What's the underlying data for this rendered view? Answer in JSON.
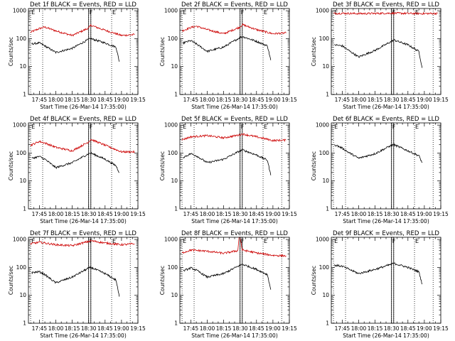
{
  "chart_data": [
    {
      "type": "line",
      "title": "Det 1f BLACK = Events, RED = LLD",
      "xlabel": "Start Time (26-Mar-14 17:35:00)",
      "ylabel": "Counts/sec",
      "yscale": "log",
      "ylim": [
        1,
        1200
      ],
      "xlim": [
        "17:35",
        "19:15"
      ],
      "x_ticks": [
        "17:45",
        "18:00",
        "18:15",
        "18:30",
        "18:45",
        "19:00",
        "19:15"
      ],
      "y_ticks": [
        "1",
        "10",
        "100",
        "1000"
      ],
      "grid": false,
      "vertical_markers": [
        "17:37",
        "17:48",
        "18:30",
        "18:32",
        "18:51",
        "19:08"
      ],
      "flag_labels": [
        "E",
        "F",
        "E"
      ],
      "series": [
        {
          "color": "#cc0000",
          "x": [
            "17:37",
            "17:45",
            "17:50",
            "18:00",
            "18:15",
            "18:30",
            "18:32",
            "18:45",
            "19:00",
            "19:12"
          ],
          "y": [
            170,
            230,
            260,
            190,
            130,
            240,
            300,
            200,
            130,
            140
          ]
        },
        {
          "color": "#000000",
          "x": [
            "17:38",
            "17:45",
            "17:50",
            "18:00",
            "18:15",
            "18:30",
            "18:32",
            "18:45",
            "18:55",
            "18:58"
          ],
          "y": [
            65,
            70,
            55,
            32,
            45,
            95,
            100,
            70,
            50,
            15
          ]
        }
      ]
    },
    {
      "type": "line",
      "title": "Det 2f BLACK = Events, RED = LLD",
      "xlabel": "Start Time (26-Mar-14 17:35:00)",
      "ylabel": "Counts/sec",
      "yscale": "log",
      "ylim": [
        1,
        1200
      ],
      "xlim": [
        "17:35",
        "19:15"
      ],
      "x_ticks": [
        "17:45",
        "18:00",
        "18:15",
        "18:30",
        "18:45",
        "19:00",
        "19:15"
      ],
      "y_ticks": [
        "1",
        "10",
        "100",
        "1000"
      ],
      "grid": false,
      "vertical_markers": [
        "17:37",
        "17:48",
        "18:30",
        "18:32",
        "18:51",
        "19:08"
      ],
      "flag_labels": [
        "E",
        "F",
        "E"
      ],
      "series": [
        {
          "color": "#cc0000",
          "x": [
            "17:37",
            "17:45",
            "17:50",
            "18:00",
            "18:15",
            "18:30",
            "18:32",
            "18:45",
            "19:00",
            "19:12"
          ],
          "y": [
            190,
            250,
            280,
            210,
            150,
            260,
            320,
            210,
            150,
            160
          ]
        },
        {
          "color": "#000000",
          "x": [
            "17:38",
            "17:45",
            "17:50",
            "18:00",
            "18:15",
            "18:30",
            "18:32",
            "18:45",
            "18:55",
            "18:58"
          ],
          "y": [
            70,
            85,
            65,
            35,
            50,
            110,
            120,
            80,
            55,
            17
          ]
        }
      ]
    },
    {
      "type": "line",
      "title": "Det 3f BLACK = Events, RED = LLD",
      "xlabel": "Start Time (26-Mar-14 17:35:00)",
      "ylabel": "Counts/sec",
      "yscale": "log",
      "ylim": [
        1,
        1200
      ],
      "xlim": [
        "17:35",
        "19:15"
      ],
      "x_ticks": [
        "17:45",
        "18:00",
        "18:15",
        "18:30",
        "18:45",
        "19:00",
        "19:15"
      ],
      "y_ticks": [
        "1",
        "10",
        "100",
        "1000"
      ],
      "grid": false,
      "vertical_markers": [
        "17:37",
        "17:48",
        "18:30",
        "18:32",
        "18:51",
        "19:08"
      ],
      "flag_labels": [
        "E",
        "F",
        "E"
      ],
      "series": [
        {
          "color": "#cc0000",
          "x": [
            "17:37",
            "17:45",
            "18:00",
            "18:15",
            "18:30",
            "18:45",
            "19:00",
            "19:12"
          ],
          "y": [
            800,
            810,
            790,
            800,
            820,
            800,
            790,
            800
          ]
        },
        {
          "color": "#000000",
          "x": [
            "17:38",
            "17:45",
            "17:50",
            "18:00",
            "18:15",
            "18:30",
            "18:32",
            "18:45",
            "18:55",
            "18:58"
          ],
          "y": [
            60,
            55,
            40,
            22,
            38,
            80,
            90,
            60,
            35,
            9
          ]
        }
      ]
    },
    {
      "type": "line",
      "title": "Det 4f BLACK = Events, RED = LLD",
      "xlabel": "Start Time (26-Mar-14 17:35:00)",
      "ylabel": "Counts/sec",
      "yscale": "log",
      "ylim": [
        1,
        1200
      ],
      "xlim": [
        "17:35",
        "19:15"
      ],
      "x_ticks": [
        "17:45",
        "18:00",
        "18:15",
        "18:30",
        "18:45",
        "19:00",
        "19:15"
      ],
      "y_ticks": [
        "1",
        "10",
        "100",
        "1000"
      ],
      "grid": false,
      "vertical_markers": [
        "17:37",
        "17:48",
        "18:30",
        "18:32",
        "18:51",
        "19:08"
      ],
      "flag_labels": [
        "E",
        "F",
        "E"
      ],
      "series": [
        {
          "color": "#cc0000",
          "x": [
            "17:37",
            "17:45",
            "17:50",
            "18:00",
            "18:15",
            "18:30",
            "18:32",
            "18:45",
            "19:00",
            "19:12"
          ],
          "y": [
            190,
            260,
            230,
            160,
            120,
            250,
            310,
            190,
            110,
            110
          ]
        },
        {
          "color": "#000000",
          "x": [
            "17:38",
            "17:45",
            "17:50",
            "18:00",
            "18:15",
            "18:30",
            "18:32",
            "18:45",
            "18:55",
            "18:58"
          ],
          "y": [
            65,
            75,
            60,
            30,
            45,
            95,
            100,
            60,
            35,
            20
          ]
        }
      ]
    },
    {
      "type": "line",
      "title": "Det 5f BLACK = Events, RED = LLD",
      "xlabel": "Start Time (26-Mar-14 17:35:00)",
      "ylabel": "Counts/sec",
      "yscale": "log",
      "ylim": [
        1,
        1200
      ],
      "xlim": [
        "17:35",
        "19:15"
      ],
      "x_ticks": [
        "17:45",
        "18:00",
        "18:15",
        "18:30",
        "18:45",
        "19:00",
        "19:15"
      ],
      "y_ticks": [
        "1",
        "10",
        "100",
        "1000"
      ],
      "grid": false,
      "vertical_markers": [
        "17:37",
        "17:48",
        "18:30",
        "18:32",
        "18:51",
        "19:08"
      ],
      "flag_labels": [
        "E",
        "F",
        "E"
      ],
      "series": [
        {
          "color": "#cc0000",
          "x": [
            "17:37",
            "17:45",
            "18:00",
            "18:15",
            "18:30",
            "18:32",
            "18:45",
            "19:00",
            "19:12"
          ],
          "y": [
            300,
            380,
            420,
            350,
            450,
            480,
            380,
            280,
            290
          ]
        },
        {
          "color": "#000000",
          "x": [
            "17:38",
            "17:45",
            "17:50",
            "18:00",
            "18:15",
            "18:30",
            "18:32",
            "18:45",
            "18:55",
            "18:58"
          ],
          "y": [
            70,
            95,
            80,
            45,
            60,
            120,
            130,
            85,
            55,
            16
          ]
        }
      ]
    },
    {
      "type": "line",
      "title": "Det 6f BLACK = Events, RED = LLD",
      "xlabel": "Start Time (26-Mar-14 17:35:00)",
      "ylabel": "Counts/sec",
      "yscale": "log",
      "ylim": [
        1,
        1200
      ],
      "xlim": [
        "17:35",
        "19:15"
      ],
      "x_ticks": [
        "17:45",
        "18:00",
        "18:15",
        "18:30",
        "18:45",
        "19:00",
        "19:15"
      ],
      "y_ticks": [
        "1",
        "10",
        "100",
        "1000"
      ],
      "grid": false,
      "vertical_markers": [
        "17:37",
        "17:48",
        "18:30",
        "18:32",
        "18:51",
        "19:08"
      ],
      "flag_labels": [
        "E",
        "F",
        "E"
      ],
      "series": [
        {
          "color": "#000000",
          "x": [
            "17:38",
            "17:45",
            "17:50",
            "18:00",
            "18:15",
            "18:30",
            "18:32",
            "18:45",
            "18:55",
            "18:58"
          ],
          "y": [
            200,
            150,
            110,
            65,
            95,
            190,
            200,
            120,
            80,
            45
          ]
        }
      ]
    },
    {
      "type": "line",
      "title": "Det 7f BLACK = Events, RED = LLD",
      "xlabel": "Start Time (26-Mar-14 17:35:00)",
      "ylabel": "Counts/sec",
      "yscale": "log",
      "ylim": [
        1,
        1200
      ],
      "xlim": [
        "17:35",
        "19:15"
      ],
      "x_ticks": [
        "17:45",
        "18:00",
        "18:15",
        "18:30",
        "18:45",
        "19:00",
        "19:15"
      ],
      "y_ticks": [
        "1",
        "10",
        "100",
        "1000"
      ],
      "grid": false,
      "vertical_markers": [
        "17:37",
        "17:48",
        "18:30",
        "18:32",
        "18:51",
        "19:08"
      ],
      "flag_labels": [
        "E",
        "F",
        "E"
      ],
      "series": [
        {
          "color": "#cc0000",
          "x": [
            "17:37",
            "17:45",
            "18:00",
            "18:15",
            "18:30",
            "18:32",
            "18:45",
            "19:00",
            "19:12"
          ],
          "y": [
            700,
            800,
            650,
            600,
            850,
            900,
            750,
            650,
            700
          ]
        },
        {
          "color": "#000000",
          "x": [
            "17:38",
            "17:45",
            "17:50",
            "18:00",
            "18:15",
            "18:30",
            "18:32",
            "18:45",
            "18:55",
            "18:58"
          ],
          "y": [
            65,
            70,
            55,
            28,
            45,
            95,
            100,
            60,
            35,
            9
          ]
        }
      ]
    },
    {
      "type": "line",
      "title": "Det 8f BLACK = Events, RED = LLD",
      "xlabel": "Start Time (26-Mar-14 17:35:00)",
      "ylabel": "Counts/sec",
      "yscale": "log",
      "ylim": [
        1,
        1200
      ],
      "xlim": [
        "17:35",
        "19:15"
      ],
      "x_ticks": [
        "17:45",
        "18:00",
        "18:15",
        "18:30",
        "18:45",
        "19:00",
        "19:15"
      ],
      "y_ticks": [
        "1",
        "10",
        "100",
        "1000"
      ],
      "grid": false,
      "vertical_markers": [
        "17:37",
        "17:48",
        "18:30",
        "18:32",
        "18:51",
        "19:08"
      ],
      "flag_labels": [
        "E",
        "F",
        "E"
      ],
      "series": [
        {
          "color": "#cc0000",
          "x": [
            "17:37",
            "17:45",
            "18:00",
            "18:15",
            "18:28",
            "18:29",
            "18:30",
            "18:32",
            "18:45",
            "19:00",
            "19:12"
          ],
          "y": [
            330,
            420,
            380,
            320,
            400,
            1200,
            1200,
            420,
            330,
            270,
            260
          ]
        },
        {
          "color": "#000000",
          "x": [
            "17:38",
            "17:45",
            "17:50",
            "18:00",
            "18:15",
            "18:30",
            "18:32",
            "18:45",
            "18:55",
            "18:58"
          ],
          "y": [
            75,
            95,
            80,
            45,
            60,
            120,
            130,
            85,
            55,
            16
          ]
        }
      ]
    },
    {
      "type": "line",
      "title": "Det 9f BLACK = Events, RED = LLD",
      "xlabel": "Start Time (26-Mar-14 17:35:00)",
      "ylabel": "Counts/sec",
      "yscale": "log",
      "ylim": [
        1,
        1200
      ],
      "xlim": [
        "17:35",
        "19:15"
      ],
      "x_ticks": [
        "17:45",
        "18:00",
        "18:15",
        "18:30",
        "18:45",
        "19:00",
        "19:15"
      ],
      "y_ticks": [
        "1",
        "10",
        "100",
        "1000"
      ],
      "grid": false,
      "vertical_markers": [
        "17:37",
        "17:48",
        "18:30",
        "18:32",
        "18:51",
        "19:08"
      ],
      "flag_labels": [
        "E",
        "F",
        "E"
      ],
      "series": [
        {
          "color": "#000000",
          "x": [
            "17:38",
            "17:45",
            "17:50",
            "18:00",
            "18:15",
            "18:30",
            "18:32",
            "18:45",
            "18:55",
            "18:58"
          ],
          "y": [
            120,
            110,
            90,
            60,
            85,
            130,
            140,
            100,
            70,
            25
          ]
        }
      ]
    }
  ]
}
